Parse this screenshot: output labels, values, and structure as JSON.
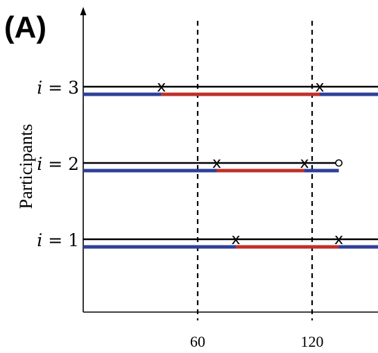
{
  "panel_label": "(A)",
  "y_axis_label": "Participants",
  "colors": {
    "axis": "#000000",
    "timeline": "#000000",
    "blue_state": "#2f3f9a",
    "red_state": "#c0302a",
    "dashed": "#000000"
  },
  "chart_data": {
    "type": "timeline",
    "x_ticks": [
      {
        "value": 60,
        "label": "60"
      },
      {
        "value": 120,
        "label": "120"
      }
    ],
    "x_range": [
      0,
      155
    ],
    "vertical_dashed_lines": [
      60,
      120
    ],
    "grid": false,
    "participants": [
      {
        "label_var": "i",
        "label_eq": "=",
        "label_num": "1",
        "line_end": 155,
        "censored_end": false,
        "events": [
          {
            "at": 80,
            "marker": "x"
          },
          {
            "at": 134,
            "marker": "x"
          }
        ],
        "segments": [
          {
            "from": 0,
            "to": 80,
            "state": "blue"
          },
          {
            "from": 80,
            "to": 134,
            "state": "red"
          },
          {
            "from": 134,
            "to": 155,
            "state": "blue"
          }
        ]
      },
      {
        "label_var": "i",
        "label_eq": "=",
        "label_num": "2",
        "line_end": 134,
        "censored_end": true,
        "events": [
          {
            "at": 70,
            "marker": "x"
          },
          {
            "at": 116,
            "marker": "x"
          }
        ],
        "segments": [
          {
            "from": 0,
            "to": 70,
            "state": "blue"
          },
          {
            "from": 70,
            "to": 116,
            "state": "red"
          },
          {
            "from": 116,
            "to": 134,
            "state": "blue"
          }
        ]
      },
      {
        "label_var": "i",
        "label_eq": "=",
        "label_num": "3",
        "line_end": 155,
        "censored_end": false,
        "events": [
          {
            "at": 41,
            "marker": "x"
          },
          {
            "at": 124,
            "marker": "x"
          }
        ],
        "segments": [
          {
            "from": 0,
            "to": 41,
            "state": "blue"
          },
          {
            "from": 41,
            "to": 124,
            "state": "red"
          },
          {
            "from": 124,
            "to": 155,
            "state": "blue"
          }
        ]
      }
    ]
  }
}
